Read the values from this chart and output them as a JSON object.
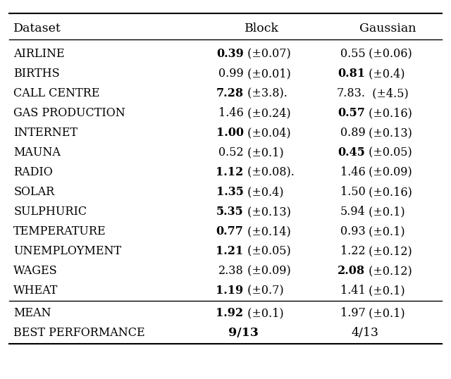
{
  "title_row": [
    "DATASET",
    "BLOCK",
    "GAUSSIAN"
  ],
  "rows": [
    {
      "dataset": "AIRLINE",
      "block": "0.39",
      "block_err": "±0.07",
      "block_bold": true,
      "gauss": "0.55",
      "gauss_err": "±0.06",
      "gauss_bold": false,
      "block_dot": false,
      "gauss_dot": false
    },
    {
      "dataset": "BIRTHS",
      "block": "0.99",
      "block_err": "±0.01",
      "block_bold": false,
      "gauss": "0.81",
      "gauss_err": "±0.4",
      "gauss_bold": true,
      "block_dot": false,
      "gauss_dot": false
    },
    {
      "dataset": "CALL CENTRE",
      "block": "7.28",
      "block_err": "±3.8",
      "block_bold": true,
      "gauss": "7.83.",
      "gauss_err": "±4.5",
      "gauss_bold": false,
      "block_dot": true,
      "gauss_dot": false
    },
    {
      "dataset": "GAS PRODUCTION",
      "block": "1.46",
      "block_err": "±0.24",
      "block_bold": false,
      "gauss": "0.57",
      "gauss_err": "±0.16",
      "gauss_bold": true,
      "block_dot": false,
      "gauss_dot": false
    },
    {
      "dataset": "INTERNET",
      "block": "1.00",
      "block_err": "±0.04",
      "block_bold": true,
      "gauss": "0.89",
      "gauss_err": "±0.13",
      "gauss_bold": false,
      "block_dot": false,
      "gauss_dot": false
    },
    {
      "dataset": "MAUNA",
      "block": "0.52",
      "block_err": "±0.1",
      "block_bold": false,
      "gauss": "0.45",
      "gauss_err": "±0.05",
      "gauss_bold": true,
      "block_dot": false,
      "gauss_dot": false
    },
    {
      "dataset": "RADIO",
      "block": "1.12",
      "block_err": "±0.08",
      "block_bold": true,
      "gauss": "1.46",
      "gauss_err": "±0.09",
      "gauss_bold": false,
      "block_dot": true,
      "gauss_dot": false
    },
    {
      "dataset": "SOLAR",
      "block": "1.35",
      "block_err": "±0.4",
      "block_bold": true,
      "gauss": "1.50",
      "gauss_err": "±0.16",
      "gauss_bold": false,
      "block_dot": false,
      "gauss_dot": false
    },
    {
      "dataset": "SULPHURIC",
      "block": "5.35",
      "block_err": "±0.13",
      "block_bold": true,
      "gauss": "5.94",
      "gauss_err": "±0.1",
      "gauss_bold": false,
      "block_dot": false,
      "gauss_dot": false
    },
    {
      "dataset": "TEMPERATURE",
      "block": "0.77",
      "block_err": "±0.14",
      "block_bold": true,
      "gauss": "0.93",
      "gauss_err": "±0.1",
      "gauss_bold": false,
      "block_dot": false,
      "gauss_dot": false
    },
    {
      "dataset": "UNEMPLOYMENT",
      "block": "1.21",
      "block_err": "±0.05",
      "block_bold": true,
      "gauss": "1.22",
      "gauss_err": "±0.12",
      "gauss_bold": false,
      "block_dot": false,
      "gauss_dot": false
    },
    {
      "dataset": "WAGES",
      "block": "2.38",
      "block_err": "±0.09",
      "block_bold": false,
      "gauss": "2.08",
      "gauss_err": "±0.12",
      "gauss_bold": true,
      "block_dot": false,
      "gauss_dot": false
    },
    {
      "dataset": "WHEAT",
      "block": "1.19",
      "block_err": "±0.7",
      "block_bold": true,
      "gauss": "1.41",
      "gauss_err": "±0.1",
      "gauss_bold": false,
      "block_dot": false,
      "gauss_dot": false
    }
  ],
  "summary_rows": [
    {
      "dataset": "MEAN",
      "block": "1.92",
      "block_err": "±0.1",
      "block_bold": true,
      "gauss": "1.97",
      "gauss_err": "±0.1",
      "gauss_bold": false
    },
    {
      "dataset": "BEST PERFORMANCE",
      "block": "9/13",
      "block_err": "",
      "block_bold": true,
      "gauss": "4/13",
      "gauss_err": "",
      "gauss_bold": false
    }
  ],
  "bg_color": "#ffffff",
  "text_color": "#000000",
  "font_size": 11.5,
  "header_font_size": 12.5
}
